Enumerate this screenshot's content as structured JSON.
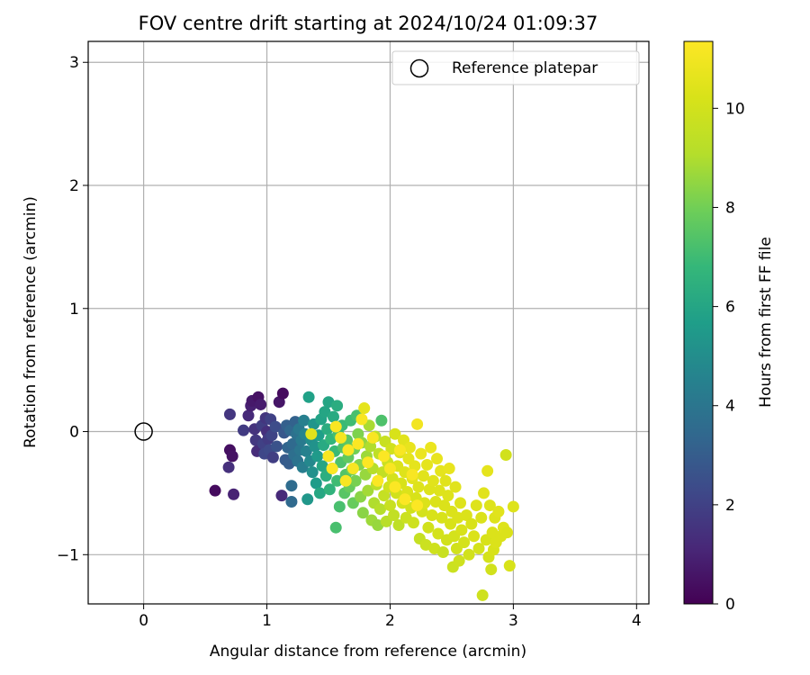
{
  "chart_data": {
    "type": "scatter",
    "title": "FOV centre drift starting at 2024/10/24 01:09:37",
    "xlabel": "Angular distance from reference (arcmin)",
    "ylabel": "Rotation from reference (arcmin)",
    "xlim": [
      -0.45,
      4.1
    ],
    "ylim": [
      -1.4,
      3.17
    ],
    "xticks": [
      0,
      1,
      2,
      3,
      4
    ],
    "yticks": [
      -1,
      0,
      1,
      2,
      3
    ],
    "grid": true,
    "legend": {
      "position": "top-right",
      "entries": [
        "Reference platepar"
      ]
    },
    "reference_point": {
      "x": 0,
      "y": 0,
      "label": "Reference platepar"
    },
    "colorbar": {
      "label": "Hours from first FF file",
      "colormap": "viridis",
      "range": [
        0,
        11.35
      ],
      "ticks": [
        0,
        2,
        4,
        6,
        8,
        10
      ]
    },
    "series": [
      {
        "name": "FOV centre",
        "points": [
          [
            0.58,
            -0.48,
            0.3
          ],
          [
            0.73,
            -0.51,
            1.0
          ],
          [
            0.7,
            -0.15,
            0.4
          ],
          [
            0.72,
            -0.2,
            0.5
          ],
          [
            0.69,
            -0.29,
            1.4
          ],
          [
            0.7,
            0.14,
            1.6
          ],
          [
            0.81,
            0.01,
            1.8
          ],
          [
            0.85,
            0.13,
            1.2
          ],
          [
            0.87,
            0.21,
            0.9
          ],
          [
            0.88,
            0.25,
            0.7
          ],
          [
            0.9,
            0.02,
            1.5
          ],
          [
            0.91,
            -0.07,
            1.7
          ],
          [
            0.92,
            -0.16,
            1.3
          ],
          [
            0.93,
            0.28,
            0.5
          ],
          [
            0.95,
            0.22,
            0.8
          ],
          [
            0.96,
            0.05,
            1.9
          ],
          [
            0.97,
            -0.1,
            2.0
          ],
          [
            0.98,
            -0.18,
            2.2
          ],
          [
            0.99,
            0.11,
            1.6
          ],
          [
            1.0,
            0.0,
            1.4
          ],
          [
            1.01,
            -0.06,
            1.8
          ],
          [
            1.02,
            -0.15,
            2.3
          ],
          [
            1.03,
            0.1,
            2.0
          ],
          [
            1.04,
            -0.03,
            2.1
          ],
          [
            1.05,
            -0.21,
            1.9
          ],
          [
            1.07,
            0.04,
            2.4
          ],
          [
            1.08,
            -0.12,
            2.6
          ],
          [
            1.1,
            0.24,
            0.6
          ],
          [
            1.12,
            -0.52,
            1.2
          ],
          [
            1.13,
            0.31,
            0.3
          ],
          [
            1.14,
            -0.01,
            2.8
          ],
          [
            1.15,
            -0.23,
            2.9
          ],
          [
            1.16,
            0.05,
            3.1
          ],
          [
            1.17,
            -0.13,
            3.3
          ],
          [
            1.18,
            -0.26,
            3.0
          ],
          [
            1.19,
            0.01,
            3.4
          ],
          [
            1.2,
            -0.44,
            3.6
          ],
          [
            1.2,
            -0.57,
            3.5
          ],
          [
            1.21,
            -0.1,
            3.5
          ],
          [
            1.22,
            -0.19,
            3.7
          ],
          [
            1.23,
            0.08,
            3.2
          ],
          [
            1.24,
            -0.02,
            3.8
          ],
          [
            1.25,
            -0.24,
            3.9
          ],
          [
            1.26,
            0.02,
            4.1
          ],
          [
            1.27,
            -0.15,
            4.0
          ],
          [
            1.28,
            -0.07,
            4.2
          ],
          [
            1.29,
            -0.29,
            4.3
          ],
          [
            1.3,
            0.09,
            4.4
          ],
          [
            1.31,
            -0.02,
            4.6
          ],
          [
            1.32,
            -0.16,
            4.5
          ],
          [
            1.33,
            -0.55,
            5.4
          ],
          [
            1.34,
            0.28,
            5.8
          ],
          [
            1.35,
            -0.24,
            4.8
          ],
          [
            1.36,
            -0.07,
            5.0
          ],
          [
            1.37,
            -0.33,
            5.1
          ],
          [
            1.38,
            0.06,
            5.3
          ],
          [
            1.39,
            -0.12,
            5.2
          ],
          [
            1.4,
            -0.42,
            5.6
          ],
          [
            1.41,
            -0.2,
            5.5
          ],
          [
            1.42,
            -0.03,
            5.7
          ],
          [
            1.43,
            -0.5,
            6.1
          ],
          [
            1.44,
            0.1,
            5.9
          ],
          [
            1.45,
            -0.28,
            6.0
          ],
          [
            1.46,
            -0.11,
            6.2
          ],
          [
            1.47,
            0.16,
            6.0
          ],
          [
            1.48,
            -0.36,
            6.4
          ],
          [
            1.49,
            0.02,
            6.3
          ],
          [
            1.5,
            0.24,
            6.0
          ],
          [
            1.5,
            -0.2,
            6.5
          ],
          [
            1.51,
            -0.47,
            6.6
          ],
          [
            1.52,
            -0.06,
            6.7
          ],
          [
            1.53,
            -0.3,
            6.8
          ],
          [
            1.54,
            0.12,
            6.2
          ],
          [
            1.55,
            -0.16,
            6.9
          ],
          [
            1.56,
            -0.78,
            7.2
          ],
          [
            1.57,
            0.21,
            6.3
          ],
          [
            1.57,
            -0.4,
            7.0
          ],
          [
            1.58,
            -0.02,
            7.1
          ],
          [
            1.59,
            -0.61,
            7.2
          ],
          [
            1.6,
            -0.25,
            7.3
          ],
          [
            1.61,
            0.05,
            6.9
          ],
          [
            1.62,
            -0.13,
            7.4
          ],
          [
            1.63,
            -0.5,
            7.5
          ],
          [
            1.64,
            -0.35,
            7.4
          ],
          [
            1.65,
            -0.07,
            7.6
          ],
          [
            1.66,
            -0.21,
            7.7
          ],
          [
            1.67,
            -0.45,
            7.8
          ],
          [
            1.68,
            0.09,
            7.0
          ],
          [
            1.69,
            -0.31,
            7.9
          ],
          [
            1.7,
            -0.58,
            7.8
          ],
          [
            1.71,
            -0.14,
            8.0
          ],
          [
            1.72,
            -0.4,
            8.1
          ],
          [
            1.73,
            0.13,
            7.2
          ],
          [
            1.74,
            -0.02,
            8.2
          ],
          [
            1.75,
            -0.27,
            8.3
          ],
          [
            1.76,
            -0.53,
            8.4
          ],
          [
            1.77,
            -0.09,
            8.5
          ],
          [
            1.78,
            -0.66,
            8.4
          ],
          [
            1.79,
            0.19,
            10.6
          ],
          [
            1.8,
            -0.35,
            8.6
          ],
          [
            1.81,
            -0.2,
            8.7
          ],
          [
            1.82,
            -0.48,
            8.8
          ],
          [
            1.83,
            0.05,
            8.9
          ],
          [
            1.84,
            -0.12,
            9.0
          ],
          [
            1.85,
            -0.72,
            8.7
          ],
          [
            1.86,
            -0.3,
            9.1
          ],
          [
            1.87,
            -0.58,
            9.0
          ],
          [
            1.88,
            -0.04,
            9.2
          ],
          [
            1.89,
            -0.43,
            9.3
          ],
          [
            1.9,
            -0.76,
            8.6
          ],
          [
            1.91,
            -0.18,
            9.4
          ],
          [
            1.92,
            -0.63,
            9.1
          ],
          [
            1.93,
            0.09,
            7.3
          ],
          [
            1.94,
            -0.33,
            9.5
          ],
          [
            1.95,
            -0.52,
            9.6
          ],
          [
            1.96,
            -0.08,
            9.7
          ],
          [
            1.97,
            -0.73,
            9.2
          ],
          [
            1.98,
            -0.25,
            9.8
          ],
          [
            1.99,
            -0.45,
            9.9
          ],
          [
            2.0,
            -0.6,
            9.7
          ],
          [
            2.01,
            -0.14,
            10.0
          ],
          [
            2.02,
            -0.38,
            10.1
          ],
          [
            2.03,
            -0.68,
            9.5
          ],
          [
            2.04,
            -0.02,
            10.2
          ],
          [
            2.05,
            -0.5,
            10.0
          ],
          [
            2.06,
            -0.28,
            10.3
          ],
          [
            2.07,
            -0.76,
            9.4
          ],
          [
            2.08,
            -0.17,
            10.4
          ],
          [
            2.09,
            -0.42,
            10.2
          ],
          [
            2.1,
            -0.58,
            10.1
          ],
          [
            2.11,
            -0.07,
            10.5
          ],
          [
            2.12,
            -0.33,
            10.4
          ],
          [
            2.13,
            -0.7,
            9.8
          ],
          [
            2.14,
            -0.49,
            10.3
          ],
          [
            2.15,
            -0.22,
            10.6
          ],
          [
            2.16,
            -0.13,
            10.7
          ],
          [
            2.17,
            -0.62,
            10.0
          ],
          [
            2.18,
            -0.38,
            10.5
          ],
          [
            2.19,
            -0.74,
            9.9
          ],
          [
            2.2,
            -0.28,
            10.6
          ],
          [
            2.21,
            -0.54,
            10.2
          ],
          [
            2.22,
            0.06,
            11.0
          ],
          [
            2.23,
            -0.45,
            10.4
          ],
          [
            2.24,
            -0.87,
            9.6
          ],
          [
            2.25,
            -0.18,
            10.8
          ],
          [
            2.26,
            -0.65,
            10.1
          ],
          [
            2.27,
            -0.36,
            10.5
          ],
          [
            2.28,
            -0.58,
            10.3
          ],
          [
            2.29,
            -0.92,
            9.8
          ],
          [
            2.3,
            -0.27,
            10.6
          ],
          [
            2.31,
            -0.78,
            10.0
          ],
          [
            2.32,
            -0.47,
            10.4
          ],
          [
            2.33,
            -0.13,
            10.8
          ],
          [
            2.34,
            -0.68,
            10.2
          ],
          [
            2.35,
            -0.4,
            10.5
          ],
          [
            2.36,
            -0.95,
            9.9
          ],
          [
            2.37,
            -0.57,
            10.3
          ],
          [
            2.38,
            -0.22,
            10.7
          ],
          [
            2.39,
            -0.83,
            10.1
          ],
          [
            2.4,
            -0.48,
            10.4
          ],
          [
            2.41,
            -0.32,
            10.6
          ],
          [
            2.42,
            -0.7,
            10.2
          ],
          [
            2.43,
            -0.98,
            9.7
          ],
          [
            2.44,
            -0.6,
            10.3
          ],
          [
            2.45,
            -0.4,
            10.5
          ],
          [
            2.46,
            -0.88,
            10.0
          ],
          [
            2.47,
            -0.52,
            10.4
          ],
          [
            2.48,
            -0.3,
            10.7
          ],
          [
            2.49,
            -0.75,
            10.2
          ],
          [
            2.5,
            -0.65,
            10.3
          ],
          [
            2.51,
            -1.1,
            9.8
          ],
          [
            2.52,
            -0.85,
            10.1
          ],
          [
            2.53,
            -0.45,
            10.5
          ],
          [
            2.54,
            -0.95,
            10.0
          ],
          [
            2.55,
            -0.7,
            10.3
          ],
          [
            2.56,
            -1.05,
            9.9
          ],
          [
            2.57,
            -0.58,
            10.4
          ],
          [
            2.58,
            -0.8,
            10.2
          ],
          [
            2.6,
            -0.9,
            10.1
          ],
          [
            2.62,
            -0.68,
            10.3
          ],
          [
            2.64,
            -1.0,
            10.0
          ],
          [
            2.66,
            -0.75,
            10.2
          ],
          [
            2.68,
            -0.85,
            10.3
          ],
          [
            2.7,
            -0.6,
            10.4
          ],
          [
            2.72,
            -0.95,
            10.1
          ],
          [
            2.74,
            -0.7,
            10.3
          ],
          [
            2.75,
            -1.33,
            9.9
          ],
          [
            2.76,
            -0.5,
            10.5
          ],
          [
            2.78,
            -0.88,
            10.2
          ],
          [
            2.79,
            -0.32,
            10.6
          ],
          [
            2.8,
            -1.02,
            10.1
          ],
          [
            2.81,
            -0.6,
            10.4
          ],
          [
            2.82,
            -1.12,
            10.0
          ],
          [
            2.83,
            -0.82,
            10.3
          ],
          [
            2.84,
            -0.96,
            10.2
          ],
          [
            2.85,
            -0.7,
            10.4
          ],
          [
            2.86,
            -0.9,
            10.3
          ],
          [
            2.88,
            -0.65,
            10.5
          ],
          [
            2.9,
            -0.85,
            10.3
          ],
          [
            2.92,
            -0.78,
            10.4
          ],
          [
            2.94,
            -0.19,
            10.0
          ],
          [
            2.95,
            -0.82,
            10.3
          ],
          [
            2.97,
            -1.09,
            10.2
          ],
          [
            3.0,
            -0.61,
            10.4
          ],
          [
            1.56,
            0.04,
            11.2
          ],
          [
            1.6,
            -0.05,
            11.1
          ],
          [
            1.66,
            -0.15,
            11.3
          ],
          [
            1.7,
            -0.3,
            11.2
          ],
          [
            1.74,
            -0.1,
            11.3
          ],
          [
            1.77,
            0.1,
            11.2
          ],
          [
            1.82,
            -0.25,
            11.3
          ],
          [
            1.86,
            -0.05,
            11.2
          ],
          [
            1.9,
            -0.4,
            11.3
          ],
          [
            1.95,
            -0.2,
            11.3
          ],
          [
            2.0,
            -0.3,
            11.2
          ],
          [
            2.04,
            -0.45,
            11.3
          ],
          [
            2.08,
            -0.15,
            11.2
          ],
          [
            2.12,
            -0.55,
            11.3
          ],
          [
            2.18,
            -0.35,
            11.2
          ],
          [
            2.22,
            -0.6,
            11.3
          ],
          [
            1.5,
            -0.2,
            11.2
          ],
          [
            1.53,
            -0.3,
            11.3
          ],
          [
            1.64,
            -0.4,
            11.2
          ],
          [
            1.36,
            -0.02,
            10.5
          ]
        ]
      }
    ]
  }
}
